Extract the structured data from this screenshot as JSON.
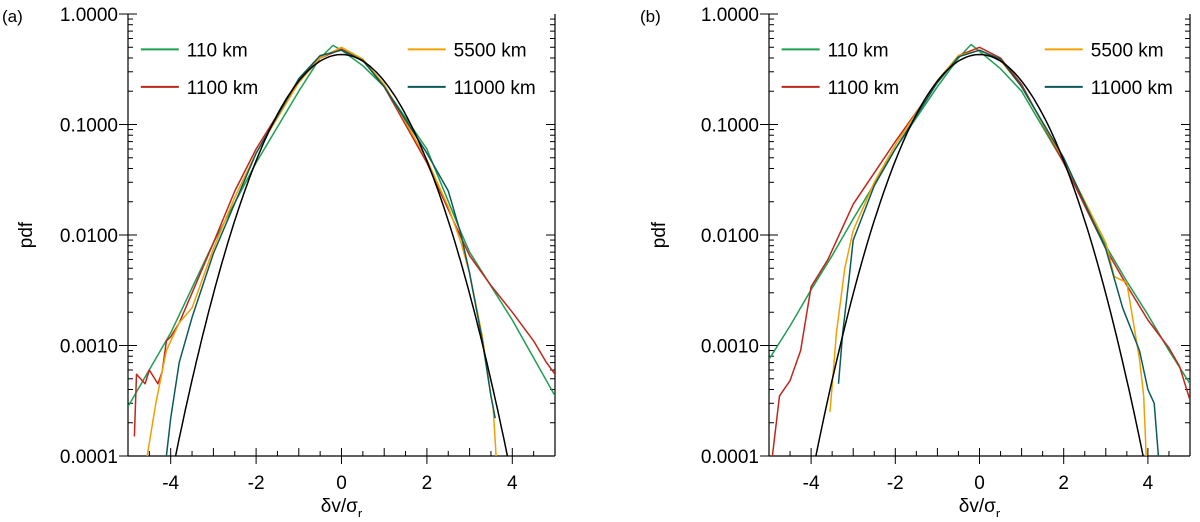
{
  "chart_data": [
    {
      "panel_label": "(a)",
      "type": "line",
      "yscale": "log",
      "xlim": [
        -5,
        5
      ],
      "ylim": [
        0.0001,
        1.0
      ],
      "xlabel": "δv/σ",
      "xlabel_sub": "r",
      "ylabel": "pdf",
      "x_ticks": [
        -4,
        -2,
        0,
        2,
        4
      ],
      "x_tick_labels": [
        "-4",
        "-2",
        "0",
        "2",
        "4"
      ],
      "y_ticks": [
        0.0001,
        0.001,
        0.01,
        0.1,
        1.0
      ],
      "y_tick_labels": [
        "0.0001",
        "0.0010",
        "0.0100",
        "0.1000",
        "1.0000"
      ],
      "legend": [
        {
          "label": "110 km",
          "color": "#1e9e53"
        },
        {
          "label": "1100 km",
          "color": "#c0261c"
        },
        {
          "label": "5500 km",
          "color": "#f0a000"
        },
        {
          "label": "11000 km",
          "color": "#0c5a5a"
        }
      ],
      "series": [
        {
          "name": "110 km",
          "color": "#1e9e53",
          "x": [
            -5,
            -4,
            -3,
            -2,
            -1,
            -0.5,
            -0.2,
            0,
            0.5,
            1,
            2,
            2.8,
            3,
            4,
            5
          ],
          "y": [
            0.00028,
            0.0013,
            0.0085,
            0.045,
            0.2,
            0.4,
            0.52,
            0.47,
            0.34,
            0.22,
            0.06,
            0.0105,
            0.007,
            0.0017,
            0.00035
          ]
        },
        {
          "name": "1100 km",
          "color": "#c0261c",
          "x": [
            -4.85,
            -4.8,
            -4.6,
            -4.5,
            -4.3,
            -4.2,
            -4.1,
            -4.0,
            -3.8,
            -3.5,
            -3.0,
            -2.5,
            -2,
            -1,
            -0.5,
            0,
            0.5,
            1,
            2,
            2.8,
            3,
            3.5,
            4,
            4.5,
            4.8,
            5.0
          ],
          "y": [
            0.00015,
            0.00055,
            0.00045,
            0.0006,
            0.00045,
            0.00058,
            0.0011,
            0.0012,
            0.0016,
            0.003,
            0.0085,
            0.025,
            0.06,
            0.25,
            0.4,
            0.48,
            0.38,
            0.22,
            0.045,
            0.0095,
            0.0065,
            0.0035,
            0.002,
            0.0011,
            0.0007,
            0.00055
          ]
        },
        {
          "name": "5500 km",
          "color": "#f0a000",
          "x": [
            -4.55,
            -4.35,
            -4.1,
            -3.8,
            -3.5,
            -3,
            -2.5,
            -2,
            -1,
            -0.5,
            0,
            0.5,
            1,
            2,
            2.5,
            2.8,
            3,
            3.3,
            3.5,
            3.55,
            3.62
          ],
          "y": [
            0.0001,
            0.0003,
            0.0009,
            0.0016,
            0.0022,
            0.0075,
            0.022,
            0.055,
            0.24,
            0.4,
            0.5,
            0.39,
            0.23,
            0.048,
            0.018,
            0.0085,
            0.0045,
            0.0012,
            0.00035,
            0.00028,
            0.0001
          ]
        },
        {
          "name": "11000 km",
          "color": "#0c5a5a",
          "x": [
            -4.1,
            -4.0,
            -3.8,
            -3.5,
            -3,
            -2,
            -1,
            -0.5,
            0,
            0.5,
            1,
            2,
            2.5,
            2.8,
            3,
            3.3,
            3.5,
            3.6
          ],
          "y": [
            0.0001,
            0.00022,
            0.0007,
            0.0018,
            0.0068,
            0.055,
            0.26,
            0.42,
            0.47,
            0.38,
            0.22,
            0.055,
            0.025,
            0.01,
            0.0045,
            0.0011,
            0.00035,
            0.00022
          ]
        },
        {
          "name": "Gaussian",
          "color": "#000000",
          "gaussian": true,
          "sigma": 0.95,
          "peak": 0.43
        }
      ]
    },
    {
      "panel_label": "(b)",
      "type": "line",
      "yscale": "log",
      "xlim": [
        -5,
        5
      ],
      "ylim": [
        0.0001,
        1.0
      ],
      "xlabel": "δv/σ",
      "xlabel_sub": "r",
      "ylabel": "pdf",
      "x_ticks": [
        -4,
        -2,
        0,
        2,
        4
      ],
      "x_tick_labels": [
        "-4",
        "-2",
        "0",
        "2",
        "4"
      ],
      "y_ticks": [
        0.0001,
        0.001,
        0.01,
        0.1,
        1.0
      ],
      "y_tick_labels": [
        "0.0001",
        "0.0010",
        "0.0100",
        "0.1000",
        "1.0000"
      ],
      "legend": [
        {
          "label": "110 km",
          "color": "#1e9e53"
        },
        {
          "label": "1100 km",
          "color": "#c0261c"
        },
        {
          "label": "5500 km",
          "color": "#f0a000"
        },
        {
          "label": "11000 km",
          "color": "#0c5a5a"
        }
      ],
      "series": [
        {
          "name": "110 km",
          "color": "#1e9e53",
          "x": [
            -5,
            -4.5,
            -4,
            -3.5,
            -3,
            -2,
            -1,
            -0.5,
            -0.2,
            0,
            0.5,
            1,
            2,
            3,
            3.5,
            4,
            4.5,
            5
          ],
          "y": [
            0.00075,
            0.0015,
            0.0032,
            0.0065,
            0.014,
            0.06,
            0.22,
            0.4,
            0.53,
            0.46,
            0.32,
            0.2,
            0.045,
            0.008,
            0.0038,
            0.0019,
            0.0009,
            0.00045
          ]
        },
        {
          "name": "1100 km",
          "color": "#c0261c",
          "x": [
            -4.92,
            -4.75,
            -4.5,
            -4.25,
            -4.0,
            -3.6,
            -3,
            -2,
            -1,
            -0.5,
            0,
            0.5,
            1,
            2,
            3,
            3.5,
            4,
            4.5,
            4.75,
            5
          ],
          "y": [
            0.0001,
            0.00035,
            0.00048,
            0.0009,
            0.0034,
            0.006,
            0.019,
            0.07,
            0.24,
            0.42,
            0.5,
            0.4,
            0.23,
            0.045,
            0.0075,
            0.0035,
            0.0017,
            0.00095,
            0.00065,
            0.00032
          ]
        },
        {
          "name": "5500 km",
          "color": "#f0a000",
          "x": [
            -3.55,
            -3.4,
            -3.2,
            -3,
            -2.5,
            -2,
            -1,
            -0.5,
            0,
            0.5,
            1,
            2,
            3,
            3.2,
            3.5,
            3.8,
            3.9,
            3.96
          ],
          "y": [
            0.00025,
            0.0013,
            0.005,
            0.011,
            0.03,
            0.065,
            0.25,
            0.42,
            0.47,
            0.38,
            0.22,
            0.048,
            0.0085,
            0.0042,
            0.0037,
            0.00075,
            0.00035,
            0.0001
          ]
        },
        {
          "name": "11000 km",
          "color": "#0c5a5a",
          "x": [
            -3.35,
            -3.25,
            -3.1,
            -3,
            -2.5,
            -2,
            -1,
            -0.5,
            0,
            0.5,
            1,
            2,
            3,
            3.4,
            3.8,
            4.0,
            4.15,
            4.25
          ],
          "y": [
            0.00045,
            0.0013,
            0.004,
            0.009,
            0.028,
            0.06,
            0.24,
            0.41,
            0.47,
            0.39,
            0.22,
            0.05,
            0.0075,
            0.0022,
            0.0009,
            0.0004,
            0.0003,
            0.0001
          ]
        },
        {
          "name": "Gaussian",
          "color": "#000000",
          "gaussian": true,
          "sigma": 0.95,
          "peak": 0.43
        }
      ]
    }
  ]
}
